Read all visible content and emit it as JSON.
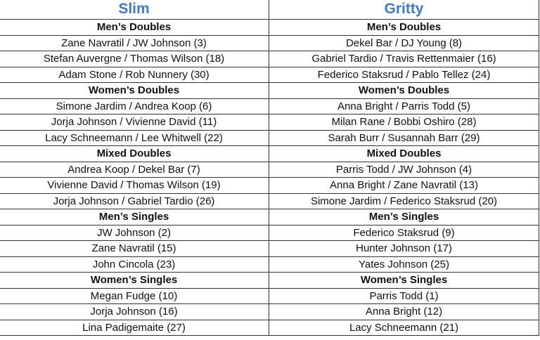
{
  "columns": [
    {
      "title": "Slim",
      "sections": [
        {
          "category": "Men’s Doubles",
          "entries": [
            "Zane Navratil / JW Johnson (3)",
            "Stefan Auvergne / Thomas Wilson (18)",
            "Adam Stone / Rob Nunnery (30)"
          ]
        },
        {
          "category": "Women’s Doubles",
          "entries": [
            "Simone Jardim / Andrea Koop (6)",
            "Jorja Johnson / Vivienne David (11)",
            "Lacy Schneemann / Lee Whitwell (22)"
          ]
        },
        {
          "category": "Mixed Doubles",
          "entries": [
            "Andrea Koop / Dekel Bar (7)",
            "Vivienne David / Thomas Wilson (19)",
            "Jorja Johnson / Gabriel Tardio (26)"
          ]
        },
        {
          "category": "Men’s Singles",
          "entries": [
            "JW Johnson (2)",
            "Zane Navratil (15)",
            "John Cincola (23)"
          ]
        },
        {
          "category": "Women’s Singles",
          "entries": [
            "Megan Fudge (10)",
            "Jorja Johnson (16)",
            "Lina Padigemaite (27)"
          ]
        }
      ]
    },
    {
      "title": "Gritty",
      "sections": [
        {
          "category": "Men’s Doubles",
          "entries": [
            "Dekel Bar / DJ Young (8)",
            "Gabriel Tardio / Travis Rettenmaier (16)",
            "Federico Staksrud / Pablo Tellez (24)"
          ]
        },
        {
          "category": "Women’s Doubles",
          "entries": [
            "Anna Bright / Parris Todd (5)",
            "Milan Rane / Bobbi Oshiro (28)",
            "Sarah Burr / Susannah Barr (29)"
          ]
        },
        {
          "category": "Mixed Doubles",
          "entries": [
            "Parris Todd / JW Johnson (4)",
            "Anna Bright / Zane Navratil (13)",
            "Simone Jardim / Federico Staksrud (20)"
          ]
        },
        {
          "category": "Men’s Singles",
          "entries": [
            "Federico Staksrud (9)",
            "Hunter Johnson (17)",
            "Yates Johnson (25)"
          ]
        },
        {
          "category": "Women’s Singles",
          "entries": [
            "Parris Todd (1)",
            "Anna Bright (12)",
            "Lacy Schneemann (21)"
          ]
        }
      ]
    }
  ],
  "colors": {
    "header_text": "#3d7cc9",
    "border": "#333333"
  }
}
